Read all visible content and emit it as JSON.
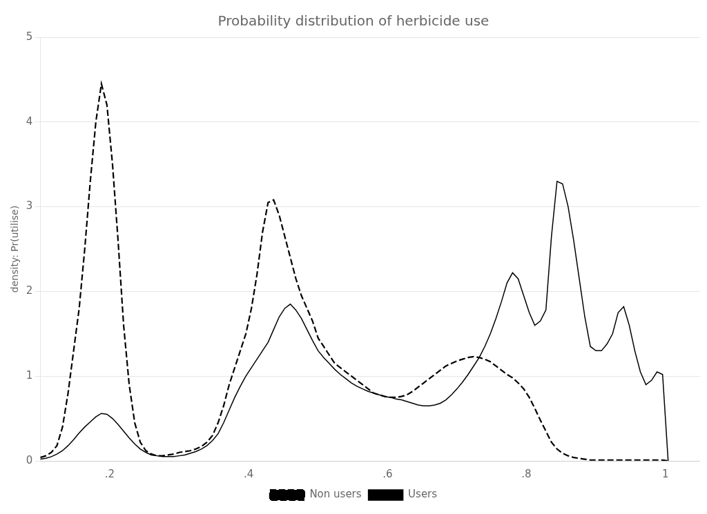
{
  "chart_data": {
    "type": "line",
    "title": "Probability distribution of herbicide use",
    "ylabel": "density: Pr(utilise)",
    "xlim": [
      0.1,
      1.05
    ],
    "ylim": [
      0,
      5
    ],
    "xticks": [
      {
        "value": 0.2,
        "label": ".2"
      },
      {
        "value": 0.4,
        "label": ".4"
      },
      {
        "value": 0.6,
        "label": ".6"
      },
      {
        "value": 0.8,
        "label": ".8"
      },
      1
    ],
    "yticks": [
      0,
      1,
      2,
      3,
      4,
      5
    ],
    "grid": "y",
    "legend": "bottom",
    "x": [
      0.1,
      0.108,
      0.116,
      0.124,
      0.132,
      0.14,
      0.148,
      0.156,
      0.164,
      0.172,
      0.18,
      0.188,
      0.196,
      0.204,
      0.212,
      0.22,
      0.228,
      0.236,
      0.244,
      0.252,
      0.26,
      0.268,
      0.276,
      0.284,
      0.292,
      0.3,
      0.308,
      0.316,
      0.324,
      0.332,
      0.34,
      0.348,
      0.356,
      0.364,
      0.372,
      0.38,
      0.388,
      0.396,
      0.404,
      0.412,
      0.42,
      0.428,
      0.436,
      0.444,
      0.452,
      0.46,
      0.468,
      0.476,
      0.484,
      0.492,
      0.5,
      0.508,
      0.516,
      0.524,
      0.532,
      0.54,
      0.548,
      0.556,
      0.564,
      0.572,
      0.58,
      0.588,
      0.596,
      0.604,
      0.612,
      0.62,
      0.628,
      0.636,
      0.644,
      0.652,
      0.66,
      0.668,
      0.676,
      0.684,
      0.692,
      0.7,
      0.708,
      0.716,
      0.724,
      0.732,
      0.74,
      0.748,
      0.756,
      0.764,
      0.772,
      0.78,
      0.788,
      0.796,
      0.804,
      0.812,
      0.82,
      0.828,
      0.836,
      0.844,
      0.852,
      0.86,
      0.868,
      0.876,
      0.884,
      0.892,
      0.9,
      0.908,
      0.916,
      0.924,
      0.932,
      0.94,
      0.948,
      0.956,
      0.964,
      0.972,
      0.98,
      0.988,
      0.996,
      1.004
    ],
    "series": [
      {
        "name": "Non users",
        "color": "#000000",
        "line_style": "dashed",
        "values": [
          0.04,
          0.06,
          0.1,
          0.18,
          0.4,
          0.8,
          1.3,
          1.8,
          2.5,
          3.3,
          4.0,
          4.45,
          4.2,
          3.5,
          2.6,
          1.6,
          0.9,
          0.45,
          0.22,
          0.12,
          0.08,
          0.06,
          0.06,
          0.07,
          0.08,
          0.1,
          0.11,
          0.12,
          0.14,
          0.17,
          0.22,
          0.3,
          0.45,
          0.65,
          0.9,
          1.1,
          1.3,
          1.5,
          1.8,
          2.2,
          2.7,
          3.05,
          3.08,
          2.9,
          2.65,
          2.4,
          2.15,
          1.95,
          1.8,
          1.65,
          1.45,
          1.35,
          1.25,
          1.15,
          1.1,
          1.05,
          1.0,
          0.95,
          0.9,
          0.85,
          0.8,
          0.78,
          0.76,
          0.75,
          0.75,
          0.76,
          0.78,
          0.82,
          0.87,
          0.92,
          0.97,
          1.02,
          1.07,
          1.12,
          1.15,
          1.18,
          1.2,
          1.22,
          1.23,
          1.22,
          1.2,
          1.17,
          1.12,
          1.07,
          1.02,
          0.98,
          0.92,
          0.85,
          0.75,
          0.62,
          0.48,
          0.35,
          0.22,
          0.14,
          0.09,
          0.06,
          0.04,
          0.03,
          0.02,
          0.01,
          0.01,
          0.01,
          0.01,
          0.01,
          0.01,
          0.01,
          0.01,
          0.01,
          0.01,
          0.01,
          0.01,
          0.01,
          0.01,
          0.0
        ]
      },
      {
        "name": "Users",
        "color": "#000000",
        "line_style": "solid",
        "values": [
          0.02,
          0.03,
          0.05,
          0.08,
          0.12,
          0.18,
          0.25,
          0.33,
          0.4,
          0.46,
          0.52,
          0.56,
          0.55,
          0.5,
          0.43,
          0.35,
          0.27,
          0.2,
          0.14,
          0.1,
          0.07,
          0.06,
          0.05,
          0.05,
          0.05,
          0.06,
          0.07,
          0.09,
          0.11,
          0.14,
          0.18,
          0.24,
          0.32,
          0.45,
          0.6,
          0.75,
          0.88,
          1.0,
          1.1,
          1.2,
          1.3,
          1.4,
          1.55,
          1.7,
          1.8,
          1.85,
          1.78,
          1.68,
          1.55,
          1.42,
          1.3,
          1.22,
          1.15,
          1.08,
          1.02,
          0.97,
          0.92,
          0.88,
          0.85,
          0.82,
          0.8,
          0.78,
          0.76,
          0.75,
          0.73,
          0.72,
          0.7,
          0.68,
          0.66,
          0.65,
          0.65,
          0.66,
          0.68,
          0.72,
          0.78,
          0.85,
          0.93,
          1.02,
          1.12,
          1.22,
          1.35,
          1.5,
          1.68,
          1.88,
          2.1,
          2.22,
          2.15,
          1.95,
          1.75,
          1.6,
          1.65,
          1.78,
          2.65,
          3.3,
          3.27,
          3.0,
          2.6,
          2.15,
          1.7,
          1.35,
          1.3,
          1.3,
          1.38,
          1.5,
          1.75,
          1.82,
          1.6,
          1.3,
          1.05,
          0.9,
          0.95,
          1.05,
          1.02,
          0.0
        ]
      }
    ]
  }
}
